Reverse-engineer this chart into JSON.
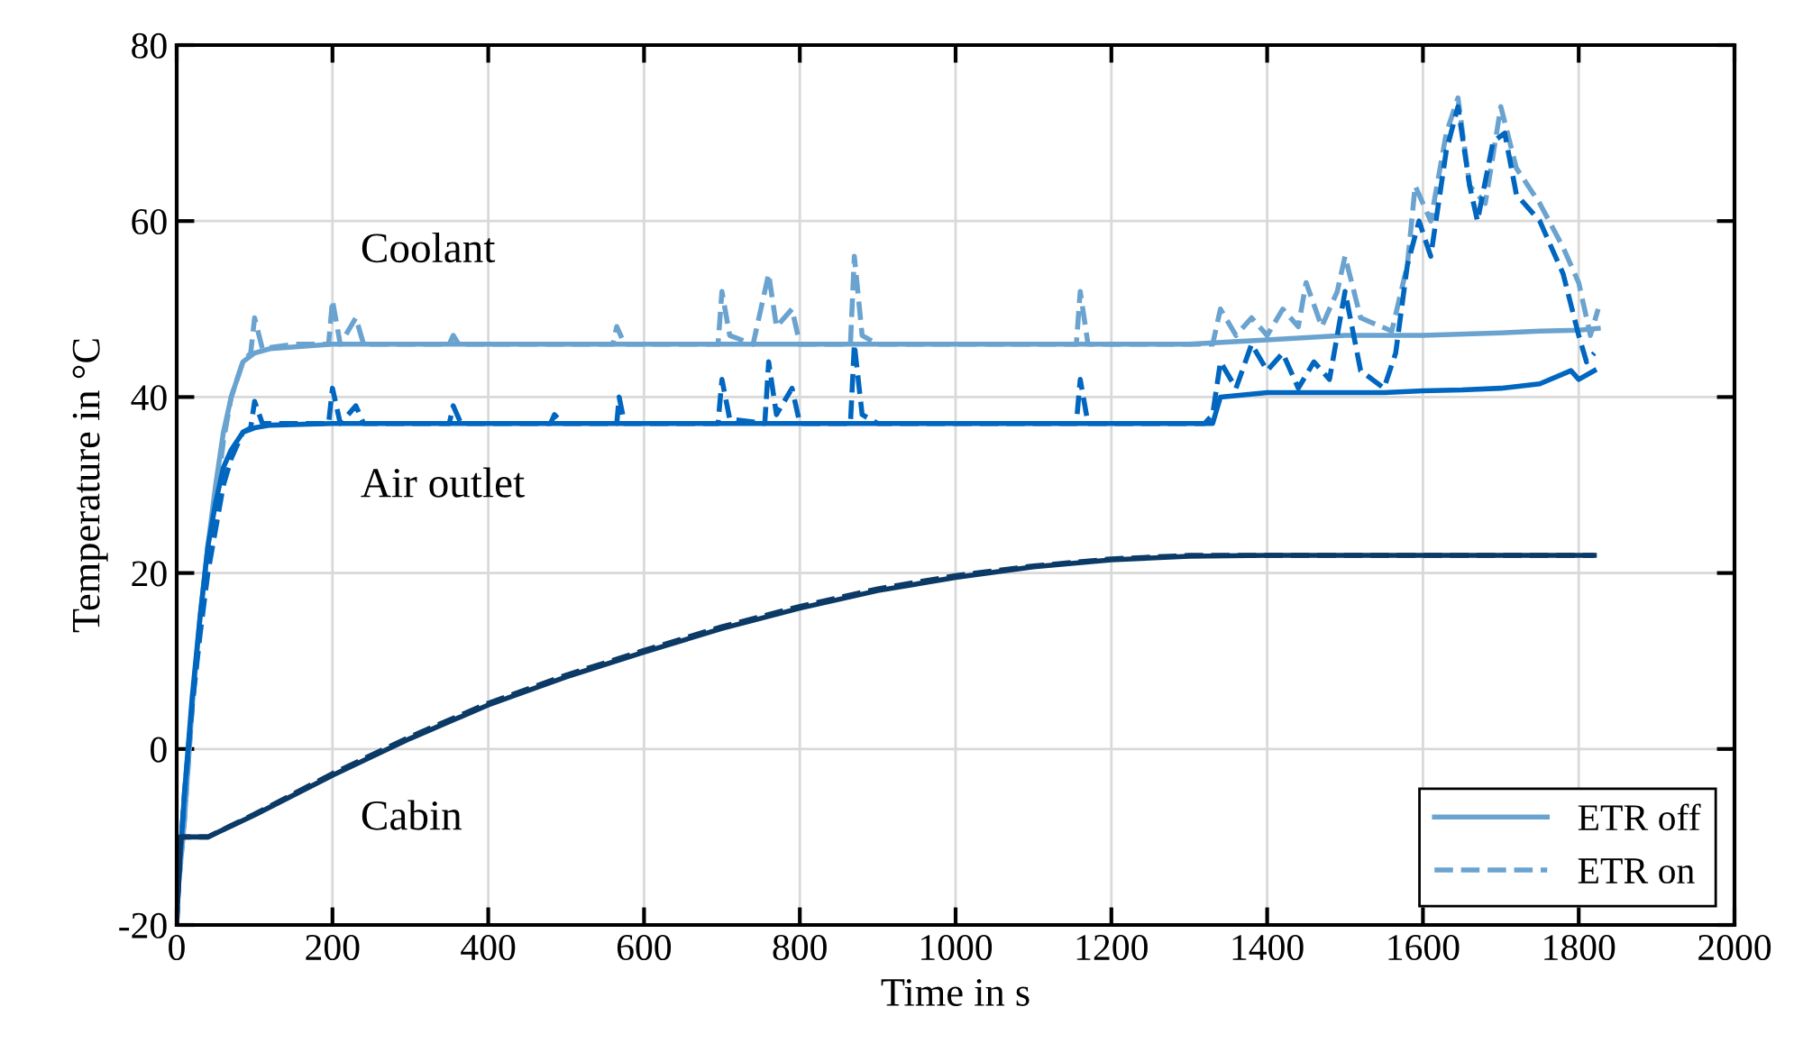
{
  "chart_data": {
    "type": "line",
    "xlabel": "Time in s",
    "ylabel": "Temperature in °C",
    "xlim": [
      0,
      2000
    ],
    "xticks": [
      0,
      200,
      400,
      600,
      800,
      1000,
      1200,
      1400,
      1600,
      1800,
      2000
    ],
    "ylim": [
      -20,
      80
    ],
    "yticks": [
      -20,
      0,
      20,
      40,
      60,
      80
    ],
    "grid": true,
    "legend": "bottom right",
    "series": [
      {
        "name": "ETR off",
        "color": "#6aa3cf",
        "line_style": "solid",
        "x": [
          0,
          10,
          20,
          30,
          40,
          50,
          60,
          70,
          85,
          100,
          120,
          200,
          400,
          600,
          800,
          1000,
          1200,
          1300,
          1400,
          1500,
          1600,
          1700,
          1750,
          1800,
          1825
        ],
        "values": [
          -18,
          -8,
          5,
          15,
          23,
          30,
          36,
          40,
          44,
          45,
          45.5,
          46,
          46,
          46,
          46,
          46,
          46,
          46,
          46.5,
          47,
          47,
          47.3,
          47.5,
          47.6,
          47.8
        ]
      },
      {
        "name": "ETR on",
        "color": "#6aa3cf",
        "line_style": "dashed",
        "x": [
          0,
          10,
          20,
          30,
          40,
          50,
          60,
          70,
          85,
          95,
          100,
          110,
          150,
          195,
          200,
          210,
          230,
          240,
          350,
          355,
          362,
          560,
          565,
          575,
          695,
          700,
          710,
          740,
          760,
          770,
          790,
          800,
          865,
          870,
          880,
          900,
          1155,
          1160,
          1170,
          1330,
          1340,
          1360,
          1380,
          1400,
          1420,
          1440,
          1450,
          1470,
          1490,
          1500,
          1520,
          1560,
          1580,
          1590,
          1610,
          1630,
          1645,
          1660,
          1680,
          1700,
          1720,
          1750,
          1780,
          1800,
          1815,
          1825
        ],
        "values": [
          -18,
          -8,
          5,
          14,
          22,
          28,
          35,
          40,
          44,
          45,
          49,
          45.5,
          46,
          46,
          51,
          46,
          49,
          46,
          46,
          47,
          46,
          46,
          48,
          46,
          46,
          52,
          47,
          46,
          54,
          48,
          50,
          46,
          46,
          56,
          47,
          46,
          46,
          52,
          46,
          46,
          50,
          47,
          49,
          47,
          50,
          48,
          53,
          48,
          52,
          56,
          49,
          47.5,
          55,
          64,
          60,
          70,
          74,
          64,
          62,
          73,
          66,
          62,
          57,
          53,
          47,
          50
        ]
      },
      {
        "color": "#0066bf",
        "line_style": "solid",
        "x": [
          0,
          10,
          20,
          30,
          40,
          50,
          60,
          70,
          85,
          100,
          120,
          200,
          400,
          600,
          800,
          1000,
          1200,
          1330,
          1340,
          1400,
          1500,
          1550,
          1600,
          1650,
          1700,
          1750,
          1790,
          1800,
          1820
        ],
        "values": [
          -18,
          -5,
          6,
          15,
          23,
          28,
          32,
          34,
          36,
          36.5,
          36.8,
          37,
          37,
          37,
          37,
          37,
          37,
          37,
          40,
          40.5,
          40.5,
          40.5,
          40.7,
          40.8,
          41,
          41.5,
          43,
          42,
          43
        ]
      },
      {
        "color": "#0066bf",
        "line_style": "dashed",
        "x": [
          0,
          10,
          20,
          30,
          40,
          50,
          60,
          70,
          85,
          95,
          100,
          110,
          195,
          200,
          210,
          230,
          240,
          350,
          355,
          365,
          480,
          485,
          495,
          565,
          568,
          575,
          695,
          700,
          710,
          755,
          760,
          770,
          790,
          800,
          865,
          870,
          880,
          900,
          1155,
          1160,
          1170,
          1320,
          1330,
          1340,
          1360,
          1380,
          1400,
          1420,
          1440,
          1460,
          1480,
          1500,
          1520,
          1550,
          1565,
          1580,
          1595,
          1610,
          1630,
          1645,
          1660,
          1670,
          1690,
          1705,
          1720,
          1750,
          1780,
          1800,
          1810,
          1820
        ],
        "values": [
          -18,
          -5,
          5,
          13,
          20,
          25,
          30,
          33,
          36,
          36.5,
          39.5,
          37,
          37,
          41,
          37,
          39,
          37,
          37,
          39,
          37,
          37,
          38,
          37,
          37,
          40,
          37,
          37,
          42,
          37.5,
          37,
          44,
          38,
          41,
          37,
          37,
          46,
          38,
          37,
          37,
          42,
          37,
          37,
          38,
          44,
          41,
          46,
          43,
          45,
          41,
          44,
          42,
          52,
          43,
          41,
          45,
          55,
          60,
          56,
          68,
          73,
          64,
          60,
          69,
          70,
          63,
          60,
          54,
          47,
          44,
          45
        ]
      },
      {
        "color": "#0b3a66",
        "line_style": "solid",
        "x": [
          0,
          5,
          40,
          100,
          200,
          300,
          400,
          500,
          600,
          700,
          800,
          900,
          1000,
          1100,
          1200,
          1300,
          1400,
          1600,
          1820
        ],
        "values": [
          -20,
          -10,
          -10,
          -7.5,
          -3,
          1.2,
          5,
          8.2,
          11,
          13.7,
          16,
          18,
          19.5,
          20.7,
          21.5,
          21.9,
          22,
          22,
          22
        ]
      },
      {
        "color": "#0b3a66",
        "line_style": "dashed",
        "x": [
          0,
          5,
          40,
          100,
          200,
          300,
          400,
          500,
          600,
          700,
          800,
          900,
          1000,
          1100,
          1200,
          1300,
          1400,
          1600,
          1820
        ],
        "values": [
          -20,
          -10,
          -10,
          -7.4,
          -2.8,
          1.4,
          5.2,
          8.4,
          11.2,
          13.9,
          16.2,
          18.2,
          19.7,
          20.8,
          21.6,
          22,
          22,
          22,
          22
        ]
      }
    ],
    "annotations": [
      "Coolant",
      "Air outlet",
      "Cabin"
    ]
  }
}
